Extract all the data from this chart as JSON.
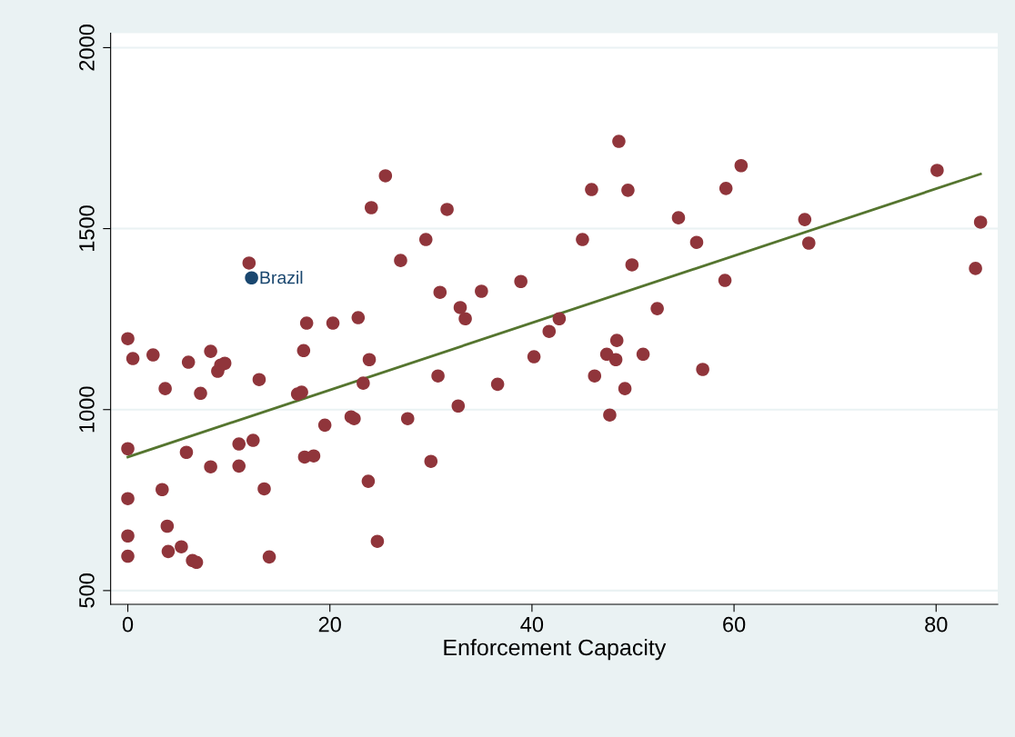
{
  "chart_data": {
    "type": "scatter",
    "xlabel": "Enforcement Capacity",
    "xlim": [
      -1.7,
      86.1
    ],
    "xticks": [
      0,
      20,
      40,
      60,
      80
    ],
    "ylim": [
      462,
      2040
    ],
    "yticks": [
      500,
      1000,
      1500,
      2000
    ],
    "grid": "y",
    "legend": false,
    "marker": "circle",
    "series": [
      {
        "color": "#90353b",
        "x": [
          0,
          0.5,
          0,
          0,
          0,
          0,
          2.5,
          3.4,
          3.7,
          3.9,
          4.0,
          5.3,
          5.8,
          6.0,
          6.4,
          6.8,
          7.2,
          8.2,
          8.2,
          8.9,
          9.2,
          9.6,
          11.0,
          11.0,
          12.0,
          12.4,
          13.0,
          13.5,
          14.0,
          16.8,
          17.2,
          17.4,
          17.5,
          17.7,
          18.4,
          19.5,
          20.3,
          22.1,
          22.4,
          22.8,
          23.3,
          23.8,
          23.9,
          24.1,
          24.7,
          25.5,
          27.0,
          27.7,
          29.5,
          30.0,
          30.7,
          30.9,
          31.6,
          32.7,
          32.9,
          33.4,
          35.0,
          36.6,
          38.9,
          40.2,
          41.7,
          42.7,
          45.0,
          45.9,
          46.2,
          47.4,
          47.7,
          48.3,
          48.4,
          48.6,
          49.2,
          49.5,
          49.9,
          51.0,
          52.4,
          54.5,
          56.3,
          56.9,
          59.1,
          59.2,
          60.7,
          67.0,
          67.4,
          80.1,
          83.9,
          84.4
        ],
        "values": [
          1196,
          1141,
          892,
          754,
          651,
          595,
          1151,
          779,
          1058,
          678,
          608,
          621,
          882,
          1131,
          583,
          578,
          1045,
          842,
          1161,
          1106,
          1123,
          1128,
          905,
          844,
          1405,
          915,
          1083,
          781,
          593,
          1043,
          1048,
          1163,
          869,
          1239,
          872,
          957,
          1239,
          980,
          975,
          1254,
          1073,
          802,
          1138,
          1558,
          636,
          1646,
          1412,
          975,
          1470,
          857,
          1093,
          1324,
          1553,
          1010,
          1282,
          1251,
          1327,
          1070,
          1354,
          1146,
          1216,
          1251,
          1470,
          1608,
          1093,
          1153,
          985,
          1138,
          1191,
          1741,
          1058,
          1606,
          1400,
          1153,
          1279,
          1530,
          1462,
          1111,
          1357,
          1611,
          1674,
          1525,
          1460,
          1661,
          1390,
          1518
        ]
      },
      {
        "name": "Brazil",
        "color": "#1a476f",
        "x": [
          12.25
        ],
        "values": [
          1364
        ]
      },
      {
        "type": "line",
        "color": "#55752f",
        "marker": "none",
        "line_style": "solid",
        "x": [
          0,
          84.4
        ],
        "values": [
          869,
          1651
        ]
      }
    ]
  }
}
